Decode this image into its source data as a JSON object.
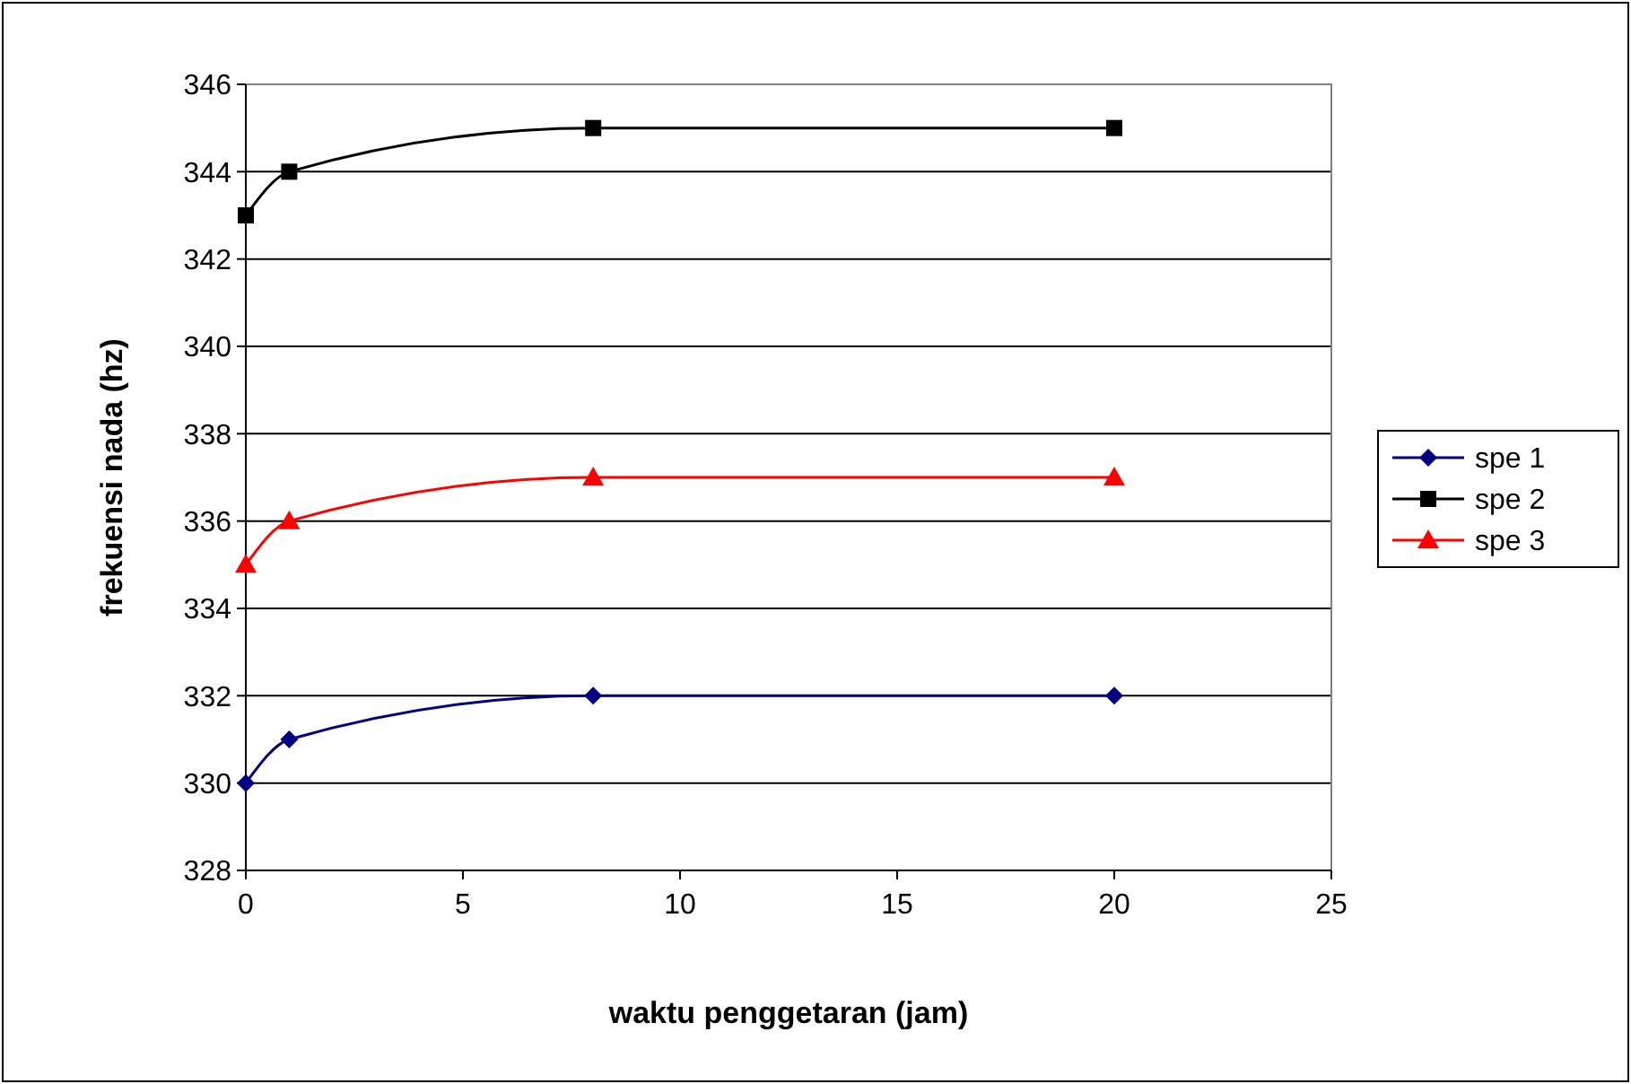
{
  "chart_data": {
    "type": "line",
    "xlabel": "waktu penggetaran (jam)",
    "ylabel": "frekuensi nada (hz)",
    "x": [
      0,
      1,
      8,
      20
    ],
    "xlim": [
      0,
      25
    ],
    "xticks": [
      0,
      5,
      10,
      15,
      20,
      25
    ],
    "ylim": [
      328,
      346
    ],
    "yticks": [
      328,
      330,
      332,
      334,
      336,
      338,
      340,
      342,
      344,
      346
    ],
    "grid": "y",
    "legend": "right",
    "series": [
      {
        "name": "spe 1",
        "color": "#000080",
        "marker": "diamond",
        "values": [
          330,
          331,
          332,
          332
        ]
      },
      {
        "name": "spe 2",
        "color": "#000000",
        "marker": "square",
        "values": [
          343,
          344,
          345,
          345
        ]
      },
      {
        "name": "spe 3",
        "color": "#ff0000",
        "marker": "triangle",
        "values": [
          335,
          336,
          337,
          337
        ]
      }
    ]
  }
}
